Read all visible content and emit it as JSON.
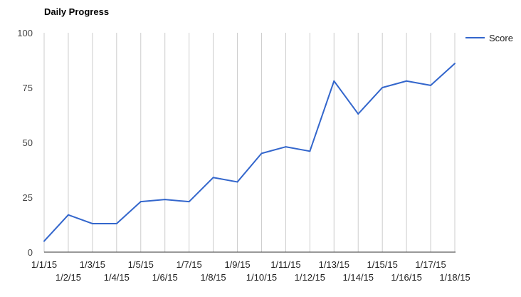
{
  "chart_data": {
    "type": "line",
    "title": "Daily Progress",
    "xlabel": "",
    "ylabel": "",
    "categories": [
      "1/1/15",
      "1/2/15",
      "1/3/15",
      "1/4/15",
      "1/5/15",
      "1/6/15",
      "1/7/15",
      "1/8/15",
      "1/9/15",
      "1/10/15",
      "1/11/15",
      "1/12/15",
      "1/13/15",
      "1/14/15",
      "1/15/15",
      "1/16/15",
      "1/17/15",
      "1/18/15"
    ],
    "series": [
      {
        "name": "Score",
        "color": "#3366cc",
        "values": [
          5,
          17,
          13,
          13,
          23,
          24,
          23,
          34,
          32,
          45,
          48,
          46,
          78,
          63,
          75,
          78,
          76,
          86
        ]
      }
    ],
    "ylim": [
      0,
      100
    ],
    "yticks": [
      0,
      25,
      50,
      75,
      100
    ],
    "grid": "vertical",
    "legend": "right"
  }
}
